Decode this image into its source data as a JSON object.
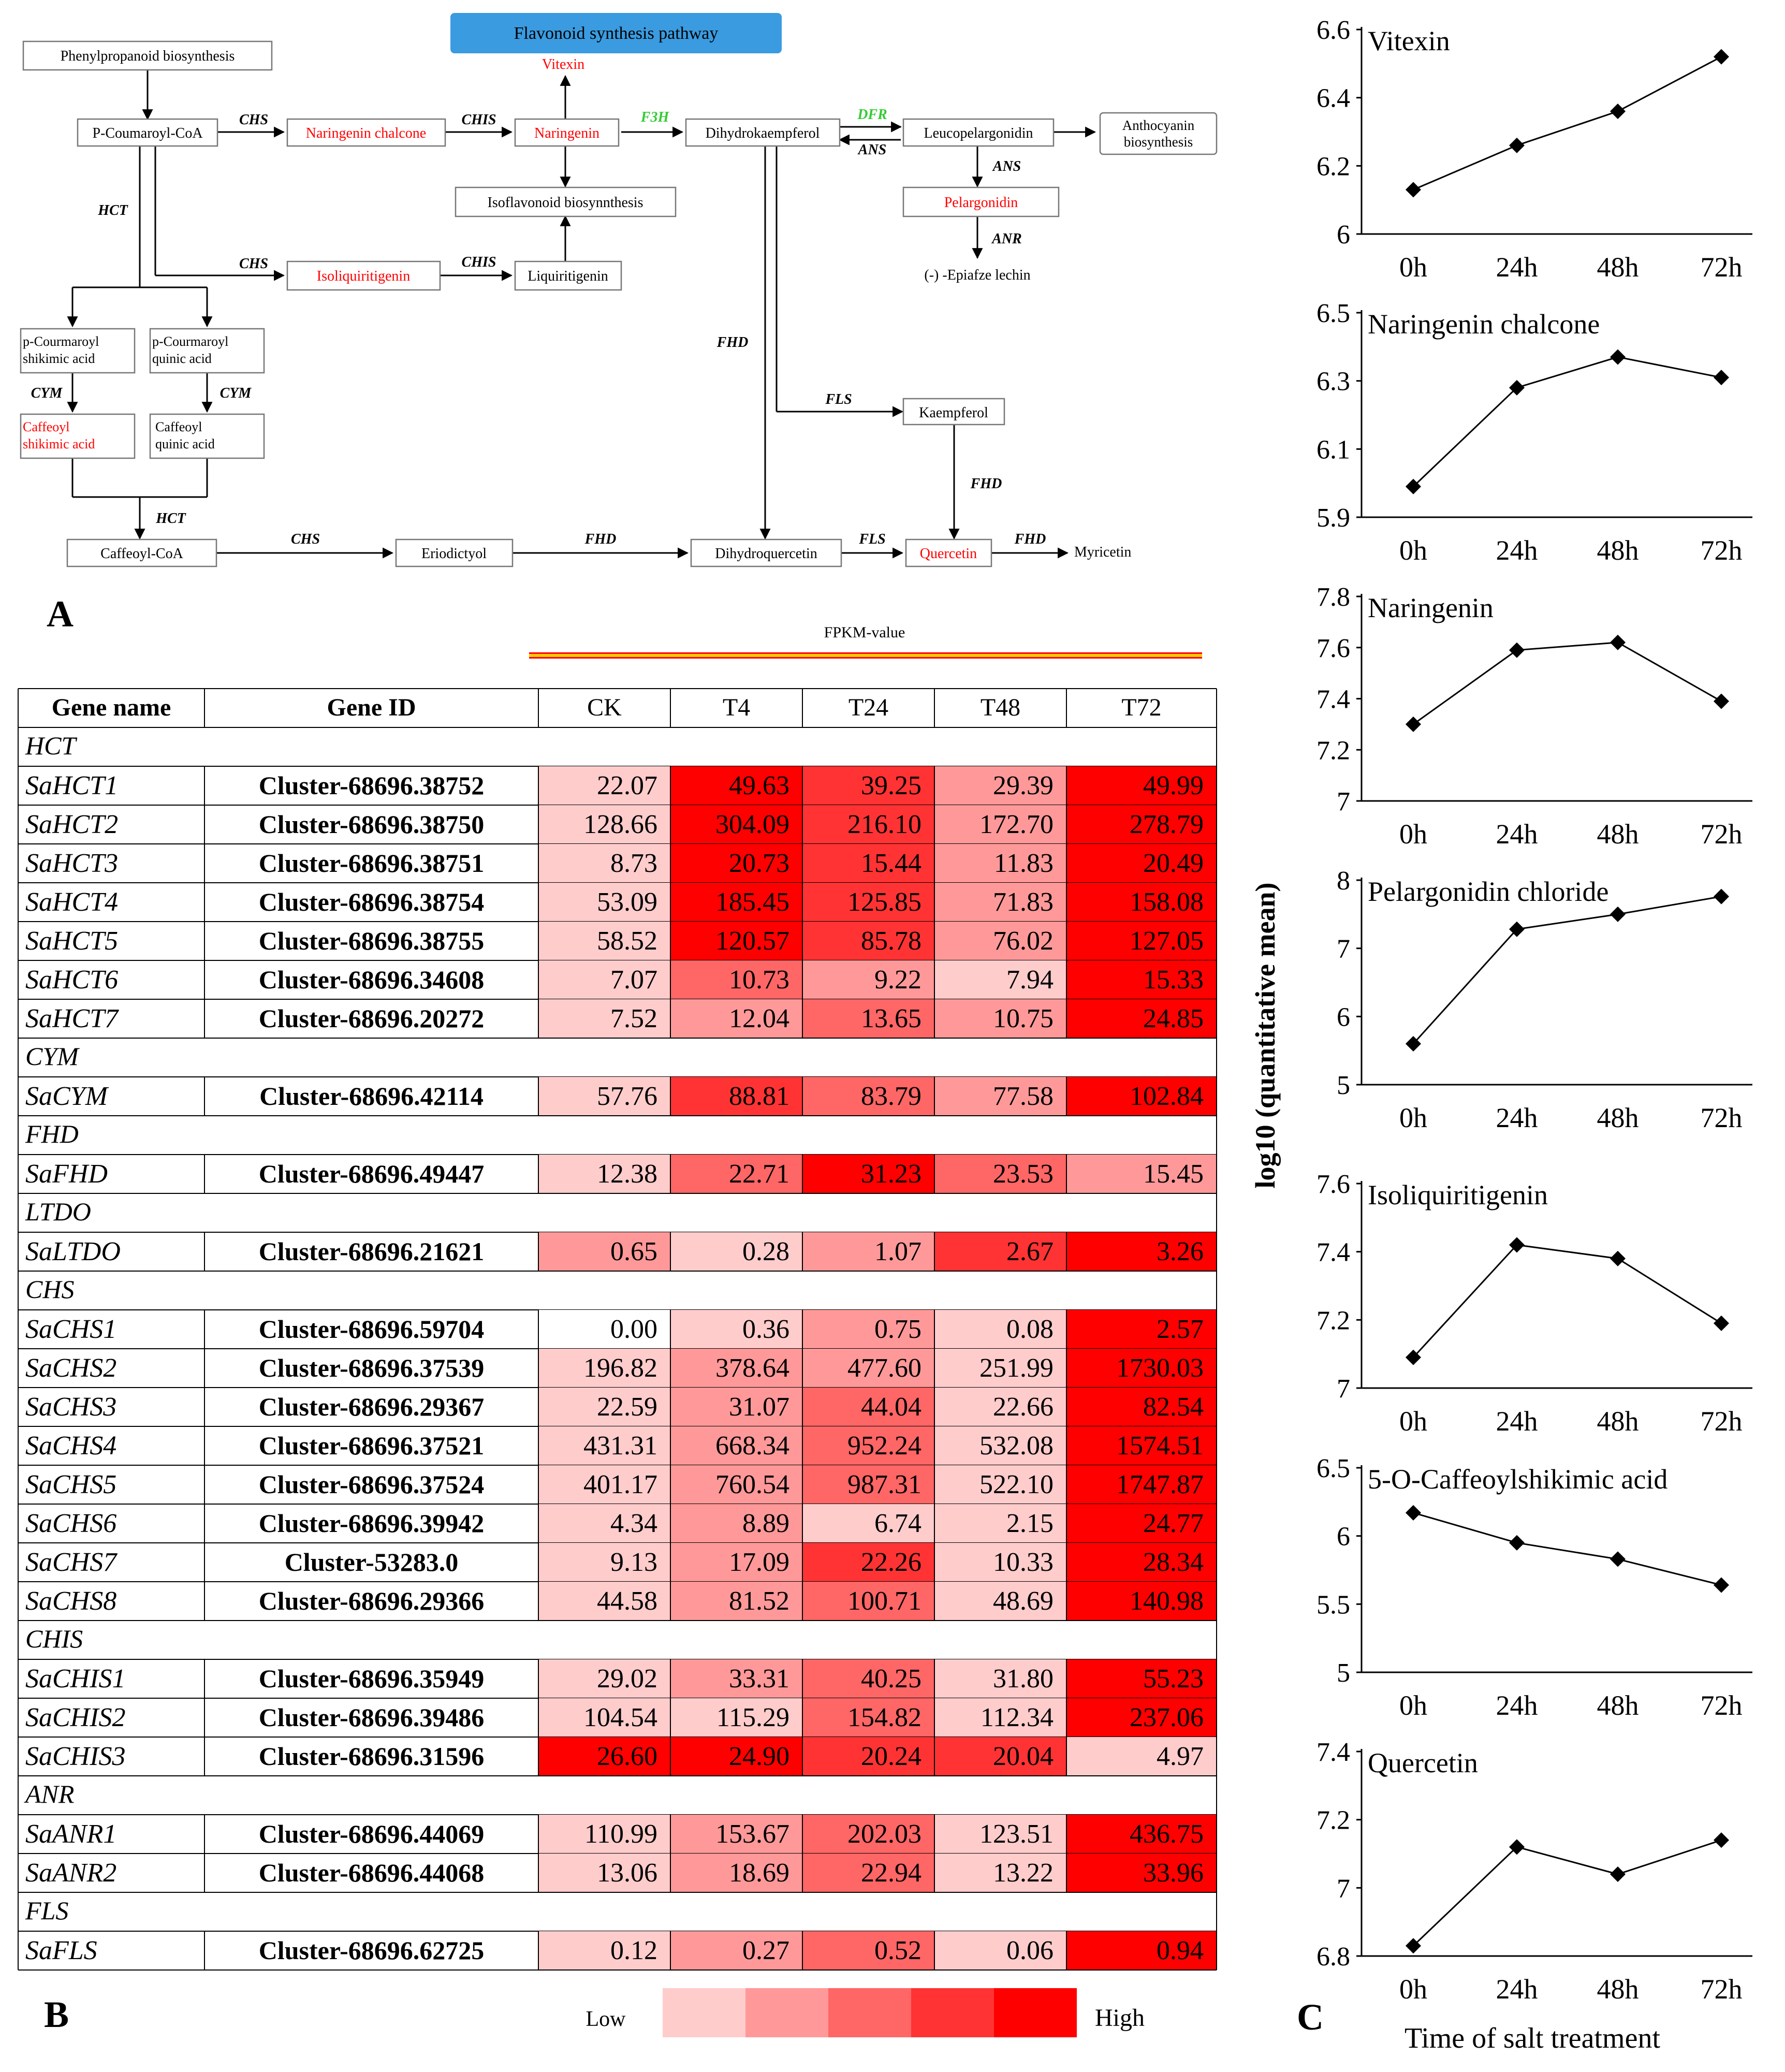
{
  "panel_labels": {
    "a": "A",
    "b": "B",
    "c": "C"
  },
  "pathway": {
    "title": "Flavonoid synthesis pathway",
    "colors": {
      "title_bg": "#3a9be0",
      "highlight": "#ff0000",
      "green_enzyme": "#33cc33"
    },
    "nodes": [
      {
        "id": "phenylpropanoid",
        "label": "Phenylpropanoid biosynthesis"
      },
      {
        "id": "coumaroyl",
        "label": "P-Coumaroyl-CoA"
      },
      {
        "id": "naringenin_chalcone",
        "label": "Naringenin chalcone",
        "highlight": true
      },
      {
        "id": "naringenin",
        "label": "Naringenin",
        "highlight": true
      },
      {
        "id": "vitexin",
        "label": "Vitexin",
        "highlight": true
      },
      {
        "id": "dihydrokaempferol",
        "label": "Dihydrokaempferol"
      },
      {
        "id": "leucopelargonidin",
        "label": "Leucopelargonidin"
      },
      {
        "id": "anthocyanin",
        "label": "Anthocyanin biosynthesis"
      },
      {
        "id": "isoflavonoid",
        "label": "Isoflavonoid biosynnthesis"
      },
      {
        "id": "pelargonidin",
        "label": "Pelargonidin",
        "highlight": true
      },
      {
        "id": "epiafzelechin",
        "label": "(-) -Epiafze lechin"
      },
      {
        "id": "isoliquiritigenin",
        "label": "Isoliquiritigenin",
        "highlight": true
      },
      {
        "id": "liquiritigenin",
        "label": "Liquiritigenin"
      },
      {
        "id": "p_shikimic",
        "label": "p-Courmaroyl shikimic acid"
      },
      {
        "id": "p_quinic",
        "label": "p-Courmaroyl quinic acid"
      },
      {
        "id": "caffeoyl_shikimic",
        "label": "Caffeoyl shikimic acid",
        "highlight": true
      },
      {
        "id": "caffeoyl_quinic",
        "label": "Caffeoyl quinic acid"
      },
      {
        "id": "kaempferol",
        "label": "Kaempferol"
      },
      {
        "id": "caffeoyl_coa",
        "label": "Caffeoyl-CoA"
      },
      {
        "id": "eriodictyol",
        "label": "Eriodictyol"
      },
      {
        "id": "dihydroquercetin",
        "label": "Dihydroquercetin"
      },
      {
        "id": "quercetin",
        "label": "Quercetin",
        "highlight": true
      },
      {
        "id": "myricetin",
        "label": "Myricetin"
      }
    ],
    "enzymes": [
      {
        "id": "chs1",
        "label": "CHS"
      },
      {
        "id": "chis1",
        "label": "CHIS"
      },
      {
        "id": "f3h",
        "label": "F3H",
        "green": true
      },
      {
        "id": "dfr",
        "label": "DFR",
        "green": true
      },
      {
        "id": "ans_back",
        "label": "ANS"
      },
      {
        "id": "ans_down",
        "label": "ANS"
      },
      {
        "id": "anr",
        "label": "ANR"
      },
      {
        "id": "hct_top",
        "label": "HCT"
      },
      {
        "id": "chs2",
        "label": "CHS"
      },
      {
        "id": "chis2",
        "label": "CHIS"
      },
      {
        "id": "fhd_mid",
        "label": "FHD"
      },
      {
        "id": "fls_mid",
        "label": "FLS"
      },
      {
        "id": "cym1",
        "label": "CYM"
      },
      {
        "id": "cym2",
        "label": "CYM"
      },
      {
        "id": "fhd_k",
        "label": "FHD"
      },
      {
        "id": "hct_bottom",
        "label": "HCT"
      },
      {
        "id": "chs3",
        "label": "CHS"
      },
      {
        "id": "fhd_b",
        "label": "FHD"
      },
      {
        "id": "fls_b",
        "label": "FLS"
      },
      {
        "id": "fhd_q",
        "label": "FHD"
      }
    ]
  },
  "heatmap": {
    "fpkm_label": "FPKM-value",
    "headers": [
      "Gene name",
      "Gene ID",
      "CK",
      "T4",
      "T24",
      "T48",
      "T72"
    ],
    "legend": {
      "low": "Low",
      "high": "High",
      "colors": [
        "#ffcccc",
        "#ff9999",
        "#ff6666",
        "#ff3333",
        "#ff0000"
      ]
    },
    "groups": [
      {
        "name": "HCT",
        "rows": [
          {
            "gene": "SaHCT1",
            "id": "Cluster-68696.38752",
            "values": [
              "22.07",
              "49.63",
              "39.25",
              "29.39",
              "49.99"
            ],
            "levels": [
              1,
              5,
              4,
              2,
              5
            ]
          },
          {
            "gene": "SaHCT2",
            "id": "Cluster-68696.38750",
            "values": [
              "128.66",
              "304.09",
              "216.10",
              "172.70",
              "278.79"
            ],
            "levels": [
              1,
              5,
              4,
              2,
              5
            ]
          },
          {
            "gene": "SaHCT3",
            "id": "Cluster-68696.38751",
            "values": [
              "8.73",
              "20.73",
              "15.44",
              "11.83",
              "20.49"
            ],
            "levels": [
              1,
              5,
              4,
              2,
              5
            ]
          },
          {
            "gene": "SaHCT4",
            "id": "Cluster-68696.38754",
            "values": [
              "53.09",
              "185.45",
              "125.85",
              "71.83",
              "158.08"
            ],
            "levels": [
              1,
              5,
              4,
              2,
              5
            ]
          },
          {
            "gene": "SaHCT5",
            "id": "Cluster-68696.38755",
            "values": [
              "58.52",
              "120.57",
              "85.78",
              "76.02",
              "127.05"
            ],
            "levels": [
              1,
              5,
              4,
              2,
              5
            ]
          },
          {
            "gene": "SaHCT6",
            "id": "Cluster-68696.34608",
            "values": [
              "7.07",
              "10.73",
              "9.22",
              "7.94",
              "15.33"
            ],
            "levels": [
              1,
              3,
              2,
              1,
              5
            ]
          },
          {
            "gene": "SaHCT7",
            "id": "Cluster-68696.20272",
            "values": [
              "7.52",
              "12.04",
              "13.65",
              "10.75",
              "24.85"
            ],
            "levels": [
              1,
              2,
              3,
              2,
              5
            ]
          }
        ]
      },
      {
        "name": "CYM",
        "rows": [
          {
            "gene": "SaCYM",
            "id": "Cluster-68696.42114",
            "values": [
              "57.76",
              "88.81",
              "83.79",
              "77.58",
              "102.84"
            ],
            "levels": [
              1,
              4,
              3,
              2,
              5
            ]
          }
        ]
      },
      {
        "name": "FHD",
        "rows": [
          {
            "gene": "SaFHD",
            "id": "Cluster-68696.49447",
            "values": [
              "12.38",
              "22.71",
              "31.23",
              "23.53",
              "15.45"
            ],
            "levels": [
              1,
              3,
              5,
              3,
              2
            ]
          }
        ]
      },
      {
        "name": "LTDO",
        "rows": [
          {
            "gene": "SaLTDO",
            "id": "Cluster-68696.21621",
            "values": [
              "0.65",
              "0.28",
              "1.07",
              "2.67",
              "3.26"
            ],
            "levels": [
              2,
              1,
              2,
              4,
              5
            ]
          }
        ]
      },
      {
        "name": "CHS",
        "rows": [
          {
            "gene": "SaCHS1",
            "id": "Cluster-68696.59704",
            "values": [
              "0.00",
              "0.36",
              "0.75",
              "0.08",
              "2.57"
            ],
            "levels": [
              0,
              1,
              2,
              1,
              5
            ]
          },
          {
            "gene": "SaCHS2",
            "id": "Cluster-68696.37539",
            "values": [
              "196.82",
              "378.64",
              "477.60",
              "251.99",
              "1730.03"
            ],
            "levels": [
              1,
              2,
              2,
              1,
              5
            ]
          },
          {
            "gene": "SaCHS3",
            "id": "Cluster-68696.29367",
            "values": [
              "22.59",
              "31.07",
              "44.04",
              "22.66",
              "82.54"
            ],
            "levels": [
              1,
              2,
              3,
              1,
              5
            ]
          },
          {
            "gene": "SaCHS4",
            "id": "Cluster-68696.37521",
            "values": [
              "431.31",
              "668.34",
              "952.24",
              "532.08",
              "1574.51"
            ],
            "levels": [
              1,
              2,
              3,
              1,
              5
            ]
          },
          {
            "gene": "SaCHS5",
            "id": "Cluster-68696.37524",
            "values": [
              "401.17",
              "760.54",
              "987.31",
              "522.10",
              "1747.87"
            ],
            "levels": [
              1,
              2,
              3,
              1,
              5
            ]
          },
          {
            "gene": "SaCHS6",
            "id": "Cluster-68696.39942",
            "values": [
              "4.34",
              "8.89",
              "6.74",
              "2.15",
              "24.77"
            ],
            "levels": [
              1,
              2,
              1,
              1,
              5
            ]
          },
          {
            "gene": "SaCHS7",
            "id": "Cluster-53283.0",
            "values": [
              "9.13",
              "17.09",
              "22.26",
              "10.33",
              "28.34"
            ],
            "levels": [
              1,
              2,
              4,
              1,
              5
            ]
          },
          {
            "gene": "SaCHS8",
            "id": "Cluster-68696.29366",
            "values": [
              "44.58",
              "81.52",
              "100.71",
              "48.69",
              "140.98"
            ],
            "levels": [
              1,
              2,
              3,
              1,
              5
            ]
          }
        ]
      },
      {
        "name": "CHIS",
        "rows": [
          {
            "gene": "SaCHIS1",
            "id": "Cluster-68696.35949",
            "values": [
              "29.02",
              "33.31",
              "40.25",
              "31.80",
              "55.23"
            ],
            "levels": [
              1,
              2,
              3,
              1,
              5
            ]
          },
          {
            "gene": "SaCHIS2",
            "id": "Cluster-68696.39486",
            "values": [
              "104.54",
              "115.29",
              "154.82",
              "112.34",
              "237.06"
            ],
            "levels": [
              1,
              1,
              3,
              1,
              5
            ]
          },
          {
            "gene": "SaCHIS3",
            "id": "Cluster-68696.31596",
            "values": [
              "26.60",
              "24.90",
              "20.24",
              "20.04",
              "4.97"
            ],
            "levels": [
              5,
              5,
              4,
              4,
              1
            ]
          }
        ]
      },
      {
        "name": "ANR",
        "rows": [
          {
            "gene": "SaANR1",
            "id": "Cluster-68696.44069",
            "values": [
              "110.99",
              "153.67",
              "202.03",
              "123.51",
              "436.75"
            ],
            "levels": [
              1,
              2,
              3,
              1,
              5
            ]
          },
          {
            "gene": "SaANR2",
            "id": "Cluster-68696.44068",
            "values": [
              "13.06",
              "18.69",
              "22.94",
              "13.22",
              "33.96"
            ],
            "levels": [
              1,
              2,
              3,
              1,
              5
            ]
          }
        ]
      },
      {
        "name": "FLS",
        "rows": [
          {
            "gene": "SaFLS",
            "id": "Cluster-68696.62725",
            "values": [
              "0.12",
              "0.27",
              "0.52",
              "0.06",
              "0.94"
            ],
            "levels": [
              1,
              2,
              3,
              1,
              5
            ]
          }
        ]
      }
    ]
  },
  "chart_data": [
    {
      "type": "line",
      "title": "Vitexin",
      "categories": [
        "0h",
        "24h",
        "48h",
        "72h"
      ],
      "values": [
        6.13,
        6.26,
        6.36,
        6.52
      ],
      "ylim": [
        6,
        6.6
      ],
      "yticks": [
        "6",
        "6.2",
        "6.4",
        "6.6"
      ]
    },
    {
      "type": "line",
      "title": "Naringenin chalcone",
      "categories": [
        "0h",
        "24h",
        "48h",
        "72h"
      ],
      "values": [
        5.99,
        6.28,
        6.37,
        6.31
      ],
      "ylim": [
        5.9,
        6.5
      ],
      "yticks": [
        "5.9",
        "6.1",
        "6.3",
        "6.5"
      ]
    },
    {
      "type": "line",
      "title": "Naringenin",
      "categories": [
        "0h",
        "24h",
        "48h",
        "72h"
      ],
      "values": [
        7.3,
        7.59,
        7.62,
        7.39
      ],
      "ylim": [
        7,
        7.8
      ],
      "yticks": [
        "7",
        "7.2",
        "7.4",
        "7.6",
        "7.8"
      ]
    },
    {
      "type": "line",
      "title": "Pelargonidin chloride",
      "categories": [
        "0h",
        "24h",
        "48h",
        "72h"
      ],
      "values": [
        5.6,
        7.28,
        7.5,
        7.76
      ],
      "ylim": [
        5,
        8
      ],
      "yticks": [
        "5",
        "6",
        "7",
        "8"
      ]
    },
    {
      "type": "line",
      "title": "Isoliquiritigenin",
      "categories": [
        "0h",
        "24h",
        "48h",
        "72h"
      ],
      "values": [
        7.09,
        7.42,
        7.38,
        7.19
      ],
      "ylim": [
        7,
        7.6
      ],
      "yticks": [
        "7",
        "7.2",
        "7.4",
        "7.6"
      ]
    },
    {
      "type": "line",
      "title": "5-O-Caffeoylshikimic acid",
      "categories": [
        "0h",
        "24h",
        "48h",
        "72h"
      ],
      "values": [
        6.17,
        5.95,
        5.83,
        5.64
      ],
      "ylim": [
        5,
        6.5
      ],
      "yticks": [
        "5",
        "5.5",
        "6",
        "6.5"
      ]
    },
    {
      "type": "line",
      "title": "Quercetin",
      "categories": [
        "0h",
        "24h",
        "48h",
        "72h"
      ],
      "values": [
        6.83,
        7.12,
        7.04,
        7.14
      ],
      "ylim": [
        6.8,
        7.4
      ],
      "yticks": [
        "6.8",
        "7",
        "7.2",
        "7.4"
      ]
    }
  ],
  "charts_common": {
    "ylabel": "log10 (quantitative mean)",
    "xlabel": "Time of salt treatment"
  }
}
